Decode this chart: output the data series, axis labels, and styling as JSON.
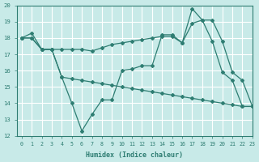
{
  "xlabel": "Humidex (Indice chaleur)",
  "background_color": "#c8eae8",
  "line_color": "#2e7d72",
  "grid_color": "#ffffff",
  "ylim": [
    12,
    20
  ],
  "xlim": [
    -0.5,
    23
  ],
  "yticks": [
    12,
    13,
    14,
    15,
    16,
    17,
    18,
    19,
    20
  ],
  "xticks": [
    0,
    1,
    2,
    3,
    4,
    5,
    6,
    7,
    8,
    9,
    10,
    11,
    12,
    13,
    14,
    15,
    16,
    17,
    18,
    19,
    20,
    21,
    22,
    23
  ],
  "line1_x": [
    0,
    1,
    2,
    3,
    4,
    5,
    6,
    7,
    8,
    9,
    10,
    11,
    12,
    13,
    14,
    15,
    16,
    17,
    18,
    19,
    20,
    21,
    22,
    23
  ],
  "line1_y": [
    18.0,
    18.3,
    17.3,
    17.3,
    15.6,
    14.0,
    12.3,
    13.3,
    14.2,
    14.2,
    16.0,
    16.1,
    16.3,
    16.3,
    18.2,
    18.2,
    17.7,
    19.8,
    19.1,
    17.8,
    15.9,
    15.4,
    13.8,
    13.8
  ],
  "line2_x": [
    0,
    1,
    2,
    3,
    4,
    5,
    6,
    7,
    8,
    9,
    10,
    11,
    12,
    13,
    14,
    15,
    16,
    17,
    18,
    19,
    20,
    21,
    22,
    23
  ],
  "line2_y": [
    18.0,
    18.0,
    17.3,
    17.3,
    17.3,
    17.3,
    17.3,
    17.2,
    17.4,
    17.6,
    17.7,
    17.8,
    17.9,
    18.0,
    18.1,
    18.1,
    17.7,
    18.9,
    19.1,
    19.1,
    17.8,
    15.9,
    15.4,
    13.8
  ],
  "line3_x": [
    0,
    1,
    2,
    3,
    4,
    5,
    6,
    7,
    8,
    9,
    10,
    11,
    12,
    13,
    14,
    15,
    16,
    17,
    18,
    19,
    20,
    21,
    22,
    23
  ],
  "line3_y": [
    18.0,
    18.0,
    17.3,
    17.3,
    15.6,
    15.5,
    15.4,
    15.3,
    15.2,
    15.1,
    15.0,
    14.9,
    14.8,
    14.7,
    14.6,
    14.5,
    14.4,
    14.3,
    14.2,
    14.1,
    14.0,
    13.9,
    13.8,
    13.8
  ]
}
